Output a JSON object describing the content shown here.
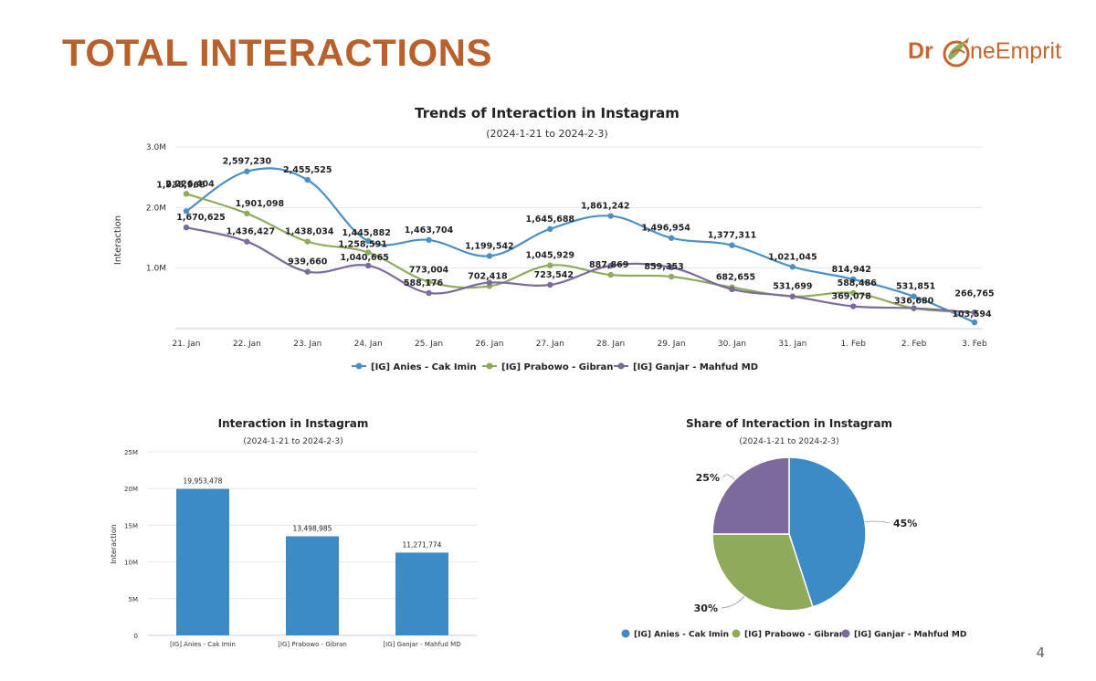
{
  "slide": {
    "title": "TOTAL INTERACTIONS",
    "logo": {
      "part1": "Dr",
      "part2": "neEmprit"
    },
    "page_number": "4",
    "brand_color": "#b8612c"
  },
  "chart_data": [
    {
      "type": "line",
      "title": "Trends of Interaction in Instagram",
      "subtitle": "(2024-1-21 to 2024-2-3)",
      "xlabel": "",
      "ylabel": "Interaction",
      "ylim": [
        0,
        3000000
      ],
      "yticks": [
        {
          "value": 1000000,
          "label": "1.0M"
        },
        {
          "value": 2000000,
          "label": "2.0M"
        },
        {
          "value": 3000000,
          "label": "3.0M"
        }
      ],
      "grid": true,
      "legend": "bottom",
      "categories": [
        "21. Jan",
        "22. Jan",
        "23. Jan",
        "24. Jan",
        "25. Jan",
        "26. Jan",
        "27. Jan",
        "28. Jan",
        "29. Jan",
        "30. Jan",
        "31. Jan",
        "1. Feb",
        "2. Feb",
        "3. Feb"
      ],
      "series": [
        {
          "name": "[IG] Anies - Cak Imin",
          "color": "#4a90c4",
          "values": [
            1938968,
            2597230,
            2455525,
            1445882,
            1463704,
            1199542,
            1645688,
            1861242,
            1496954,
            1377311,
            1021045,
            814942,
            531851,
            103594
          ],
          "labels": [
            "1,938,968",
            "2,597,230",
            "2,455,525",
            "1,445,882",
            "1,463,704",
            "1,199,542",
            "1,645,688",
            "1,861,242",
            "1,496,954",
            "1,377,311",
            "1,021,045",
            "814,942",
            "531,851",
            "103,594"
          ]
        },
        {
          "name": "[IG] Prabowo - Gibran",
          "color": "#8faa5a",
          "values": [
            2226404,
            1901098,
            1438034,
            1258591,
            773004,
            702418,
            1045929,
            887869,
            859353,
            682655,
            531699,
            588486,
            336680,
            266765
          ],
          "labels": [
            "2,226,404",
            "1,901,098",
            "1,438,034",
            "1,258,591",
            "773,004",
            "702,418",
            "1,045,929",
            "887,869",
            "859,353",
            "682,655",
            "531,699",
            "588,486",
            "336,680",
            "266,765"
          ]
        },
        {
          "name": "[IG] Ganjar - Mahfud MD",
          "color": "#7b6a9c",
          "values": [
            1670625,
            1436427,
            939660,
            1040665,
            588176,
            760000,
            723542,
            1040000,
            1010000,
            650000,
            531699,
            369078,
            336680,
            266765
          ],
          "labels": [
            "1,670,625",
            "1,436,427",
            "939,660",
            "1,040,665",
            "588,176",
            "",
            "723,542",
            "",
            "",
            "",
            "",
            "369,078",
            "",
            ""
          ]
        }
      ]
    },
    {
      "type": "bar",
      "title": "Interaction in Instagram",
      "subtitle": "(2024-1-21 to 2024-2-3)",
      "xlabel": "",
      "ylabel": "Interaction",
      "ylim": [
        0,
        25000000
      ],
      "yticks": [
        {
          "value": 0,
          "label": "0"
        },
        {
          "value": 5000000,
          "label": "5M"
        },
        {
          "value": 10000000,
          "label": "10M"
        },
        {
          "value": 15000000,
          "label": "15M"
        },
        {
          "value": 20000000,
          "label": "20M"
        },
        {
          "value": 25000000,
          "label": "25M"
        }
      ],
      "grid": true,
      "color": "#3d8bc4",
      "categories": [
        "[IG] Anies - Cak Imin",
        "[IG] Prabowo - Gibran",
        "[IG] Ganjar - Mahfud MD"
      ],
      "values": [
        19953478,
        13498985,
        11271774
      ],
      "labels": [
        "19,953,478",
        "13,498,985",
        "11,271,774"
      ]
    },
    {
      "type": "pie",
      "title": "Share of Interaction in Instagram",
      "subtitle": "(2024-1-21 to 2024-2-3)",
      "legend": "bottom",
      "slices": [
        {
          "name": "[IG] Anies - Cak Imin",
          "value": 45,
          "label": "45%",
          "color": "#3d8bc4"
        },
        {
          "name": "[IG] Prabowo - Gibran",
          "value": 30,
          "label": "30%",
          "color": "#8faa5a"
        },
        {
          "name": "[IG] Ganjar - Mahfud MD",
          "value": 25,
          "label": "25%",
          "color": "#7d6a9c"
        }
      ]
    }
  ]
}
